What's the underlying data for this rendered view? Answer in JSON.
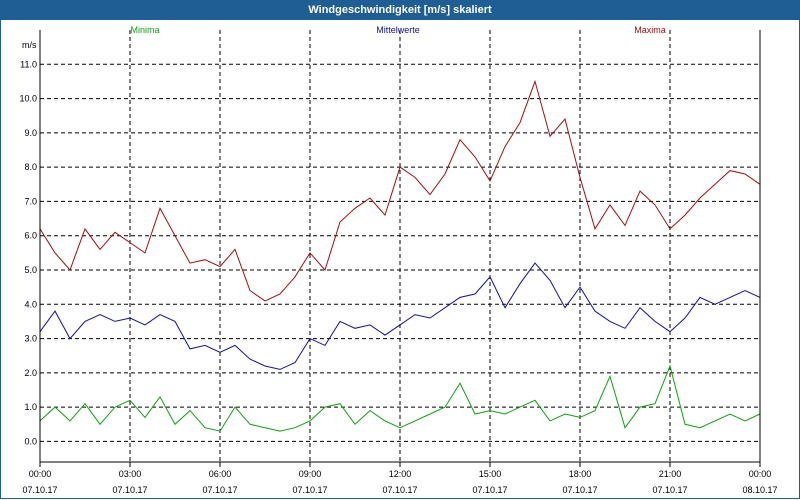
{
  "window": {
    "title": "Windgeschwindigkeit [m/s] skaliert"
  },
  "chart_data": {
    "type": "line",
    "title": "Windgeschwindigkeit [m/s] skaliert",
    "ylabel": "m/s",
    "ylim": [
      -0.6,
      12.0
    ],
    "xlim": [
      0,
      24
    ],
    "grid": true,
    "legend_placement": "top",
    "y_ticks": [
      "0.0",
      "1.0",
      "2.0",
      "3.0",
      "4.0",
      "5.0",
      "6.0",
      "7.0",
      "8.0",
      "9.0",
      "10.0",
      "11.0"
    ],
    "x_ticks": [
      {
        "time": "00:00",
        "date": "07.10.17"
      },
      {
        "time": "03:00",
        "date": "07.10.17"
      },
      {
        "time": "06:00",
        "date": "07.10.17"
      },
      {
        "time": "09:00",
        "date": "07.10.17"
      },
      {
        "time": "12:00",
        "date": "07.10.17"
      },
      {
        "time": "15:00",
        "date": "07.10.17"
      },
      {
        "time": "18:00",
        "date": "07.10.17"
      },
      {
        "time": "21:00",
        "date": "07.10.17"
      },
      {
        "time": "00:00",
        "date": "08.10.17"
      }
    ],
    "series": [
      {
        "name": "Minima",
        "color": "#10a010",
        "x": [
          0,
          0.5,
          1,
          1.5,
          2,
          2.5,
          3,
          3.5,
          4,
          4.5,
          5,
          5.5,
          6,
          6.5,
          7,
          7.5,
          8,
          8.5,
          9,
          9.5,
          10,
          10.5,
          11,
          11.5,
          12,
          12.5,
          13,
          13.5,
          14,
          14.5,
          15,
          15.5,
          16,
          16.5,
          17,
          17.5,
          18,
          18.5,
          19,
          19.5,
          20,
          20.5,
          21,
          21.5,
          22,
          22.5,
          23,
          23.5,
          24
        ],
        "values": [
          0.6,
          1.0,
          0.6,
          1.1,
          0.5,
          1.0,
          1.2,
          0.7,
          1.3,
          0.5,
          0.9,
          0.4,
          0.3,
          1.0,
          0.5,
          0.4,
          0.3,
          0.4,
          0.6,
          1.0,
          1.1,
          0.5,
          0.9,
          0.6,
          0.4,
          0.6,
          0.8,
          1.0,
          1.7,
          0.8,
          0.9,
          0.8,
          1.0,
          1.2,
          0.6,
          0.8,
          0.7,
          0.9,
          1.9,
          0.4,
          1.0,
          1.1,
          2.2,
          0.5,
          0.4,
          0.6,
          0.8,
          0.6,
          0.8
        ]
      },
      {
        "name": "Mittelwerte",
        "color": "#1010a0",
        "x": [
          0,
          0.5,
          1,
          1.5,
          2,
          2.5,
          3,
          3.5,
          4,
          4.5,
          5,
          5.5,
          6,
          6.5,
          7,
          7.5,
          8,
          8.5,
          9,
          9.5,
          10,
          10.5,
          11,
          11.5,
          12,
          12.5,
          13,
          13.5,
          14,
          14.5,
          15,
          15.5,
          16,
          16.5,
          17,
          17.5,
          18,
          18.5,
          19,
          19.5,
          20,
          20.5,
          21,
          21.5,
          22,
          22.5,
          23,
          23.5,
          24
        ],
        "values": [
          3.2,
          3.8,
          3.0,
          3.5,
          3.7,
          3.5,
          3.6,
          3.4,
          3.7,
          3.5,
          2.7,
          2.8,
          2.6,
          2.8,
          2.4,
          2.2,
          2.1,
          2.3,
          3.0,
          2.8,
          3.5,
          3.3,
          3.4,
          3.1,
          3.4,
          3.7,
          3.6,
          3.9,
          4.2,
          4.3,
          4.8,
          3.9,
          4.6,
          5.2,
          4.7,
          3.9,
          4.5,
          3.8,
          3.5,
          3.3,
          3.9,
          3.5,
          3.2,
          3.6,
          4.2,
          4.0,
          4.2,
          4.4,
          4.2
        ]
      },
      {
        "name": "Maxima",
        "color": "#a01010",
        "x": [
          0,
          0.5,
          1,
          1.5,
          2,
          2.5,
          3,
          3.5,
          4,
          4.5,
          5,
          5.5,
          6,
          6.5,
          7,
          7.5,
          8,
          8.5,
          9,
          9.5,
          10,
          10.5,
          11,
          11.5,
          12,
          12.5,
          13,
          13.5,
          14,
          14.5,
          15,
          15.5,
          16,
          16.5,
          17,
          17.5,
          18,
          18.5,
          19,
          19.5,
          20,
          20.5,
          21,
          21.5,
          22,
          22.5,
          23,
          23.5,
          24
        ],
        "values": [
          6.2,
          5.5,
          5.0,
          6.2,
          5.6,
          6.1,
          5.8,
          5.5,
          6.8,
          6.0,
          5.2,
          5.3,
          5.1,
          5.6,
          4.4,
          4.1,
          4.3,
          4.8,
          5.5,
          5.0,
          6.4,
          6.8,
          7.1,
          6.6,
          8.0,
          7.7,
          7.2,
          7.8,
          8.8,
          8.3,
          7.6,
          8.6,
          9.3,
          10.5,
          8.9,
          9.4,
          7.7,
          6.2,
          6.9,
          6.3,
          7.3,
          6.9,
          6.2,
          6.6,
          7.1,
          7.5,
          7.9,
          7.8,
          7.5
        ]
      }
    ]
  }
}
